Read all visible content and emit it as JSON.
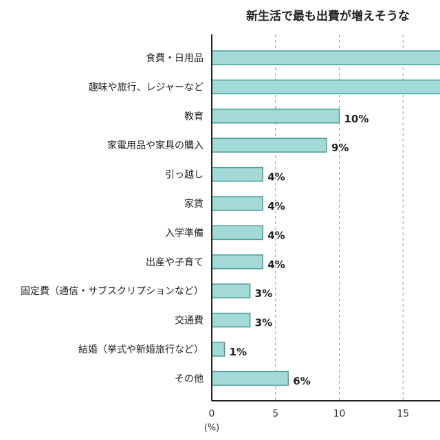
{
  "chart_data": {
    "type": "bar",
    "orientation": "horizontal",
    "title": "新生活で最も出費が増えそうな",
    "xlabel": "(%)",
    "xlim": [
      0,
      18
    ],
    "xticks": [
      "0",
      "5",
      "10",
      "15"
    ],
    "grid": "vertical dashed",
    "bar_color": "#a3d9d6",
    "bar_edge_color": "#4a9e9a",
    "categories": [
      "食費・日用品",
      "趣味や旅行、レジャーなど",
      "教育",
      "家電用品や家具の購入",
      "引っ越し",
      "家賃",
      "入学準備",
      "出産や子育て",
      "固定費（通信・サブスクリプションなど）",
      "交通費",
      "結婚（挙式や新婚旅行など）",
      "その他"
    ],
    "values": [
      null,
      null,
      10,
      9,
      4,
      4,
      4,
      4,
      3,
      3,
      1,
      6
    ],
    "labels": [
      "",
      "",
      "10%",
      "9%",
      "4%",
      "4%",
      "4%",
      "4%",
      "3%",
      "3%",
      "1%",
      "6%"
    ]
  }
}
